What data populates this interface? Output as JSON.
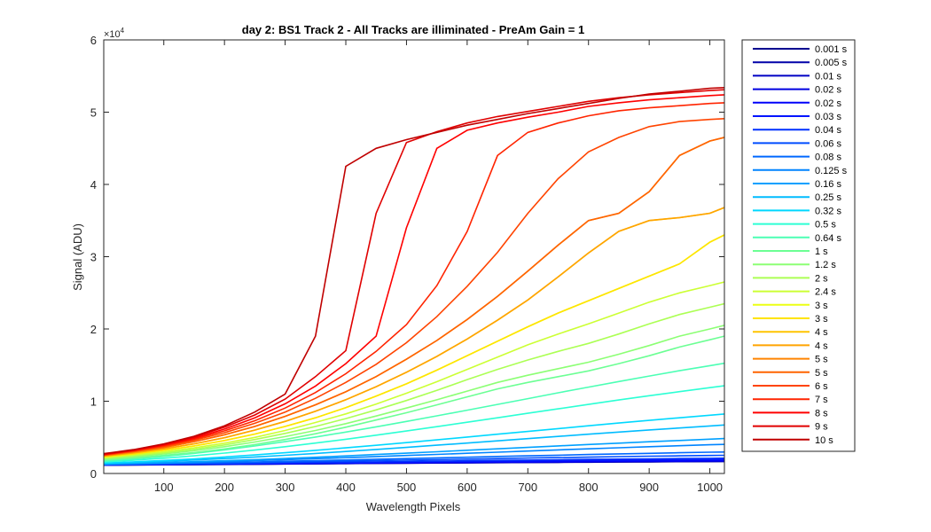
{
  "chart_data": {
    "type": "line",
    "title": "day 2: BS1  Track 2 - All Tracks are illiminated - PreAm Gain = 1",
    "xlabel": "Wavelength Pixels",
    "ylabel": "Signal (ADU)",
    "y_exponent_label": "×10",
    "y_exponent_power": "4",
    "xlim": [
      1,
      1024
    ],
    "ylim": [
      0,
      60000
    ],
    "x_ticks": [
      100,
      200,
      300,
      400,
      500,
      600,
      700,
      800,
      900,
      1000
    ],
    "y_ticks": [
      0,
      10000,
      20000,
      30000,
      40000,
      50000,
      60000
    ],
    "x_tick_labels": [
      "100",
      "200",
      "300",
      "400",
      "500",
      "600",
      "700",
      "800",
      "900",
      "1000"
    ],
    "y_tick_labels": [
      "0",
      "1",
      "2",
      "3",
      "4",
      "5",
      "6"
    ],
    "grid": false,
    "legend_position": "outside-right",
    "x": [
      1,
      50,
      100,
      150,
      200,
      250,
      300,
      350,
      400,
      450,
      500,
      550,
      600,
      650,
      700,
      750,
      800,
      850,
      900,
      950,
      1000,
      1024
    ],
    "series": [
      {
        "name": "0.001 s",
        "color": "#00008f",
        "values": [
          1150,
          1180,
          1200,
          1230,
          1250,
          1280,
          1310,
          1340,
          1370,
          1400,
          1420,
          1450,
          1470,
          1500,
          1520,
          1540,
          1560,
          1590,
          1610,
          1630,
          1650,
          1660
        ]
      },
      {
        "name": "0.005 s",
        "color": "#0000a8",
        "values": [
          1160,
          1190,
          1210,
          1240,
          1260,
          1290,
          1320,
          1350,
          1380,
          1410,
          1430,
          1460,
          1480,
          1510,
          1530,
          1550,
          1580,
          1600,
          1620,
          1640,
          1660,
          1670
        ]
      },
      {
        "name": "0.01 s",
        "color": "#0000c4",
        "values": [
          1170,
          1200,
          1220,
          1250,
          1280,
          1300,
          1330,
          1360,
          1390,
          1420,
          1450,
          1470,
          1500,
          1530,
          1550,
          1570,
          1600,
          1620,
          1640,
          1660,
          1680,
          1690
        ]
      },
      {
        "name": "0.02 s",
        "color": "#0000e0",
        "values": [
          1180,
          1210,
          1240,
          1270,
          1300,
          1330,
          1360,
          1400,
          1430,
          1460,
          1490,
          1520,
          1550,
          1580,
          1610,
          1630,
          1660,
          1690,
          1710,
          1730,
          1760,
          1770
        ]
      },
      {
        "name": "0.02 s",
        "color": "#0000fa",
        "values": [
          1180,
          1210,
          1240,
          1270,
          1300,
          1330,
          1360,
          1400,
          1430,
          1460,
          1490,
          1520,
          1550,
          1580,
          1610,
          1630,
          1660,
          1690,
          1710,
          1730,
          1760,
          1770
        ]
      },
      {
        "name": "0.03 s",
        "color": "#0014ff",
        "values": [
          1190,
          1220,
          1260,
          1290,
          1330,
          1370,
          1410,
          1450,
          1490,
          1530,
          1570,
          1610,
          1650,
          1690,
          1720,
          1760,
          1800,
          1830,
          1860,
          1890,
          1920,
          1930
        ]
      },
      {
        "name": "0.04 s",
        "color": "#0030ff",
        "values": [
          1200,
          1240,
          1280,
          1320,
          1370,
          1410,
          1460,
          1510,
          1560,
          1610,
          1660,
          1710,
          1760,
          1810,
          1850,
          1900,
          1950,
          1990,
          2030,
          2070,
          2100,
          2120
        ]
      },
      {
        "name": "0.06 s",
        "color": "#004cff",
        "values": [
          1220,
          1270,
          1320,
          1380,
          1440,
          1500,
          1570,
          1640,
          1710,
          1780,
          1850,
          1920,
          1990,
          2060,
          2130,
          2200,
          2260,
          2330,
          2390,
          2440,
          2490,
          2510
        ]
      },
      {
        "name": "0.08 s",
        "color": "#0068ff",
        "values": [
          1240,
          1300,
          1370,
          1440,
          1520,
          1600,
          1690,
          1780,
          1870,
          1970,
          2060,
          2160,
          2250,
          2350,
          2440,
          2530,
          2620,
          2710,
          2790,
          2870,
          2940,
          2970
        ]
      },
      {
        "name": "0.125 s",
        "color": "#0084ff",
        "values": [
          1280,
          1360,
          1450,
          1550,
          1660,
          1780,
          1910,
          2050,
          2190,
          2340,
          2490,
          2640,
          2800,
          2950,
          3110,
          3260,
          3410,
          3560,
          3700,
          3840,
          3970,
          4030
        ]
      },
      {
        "name": "0.16 s",
        "color": "#00a0ff",
        "values": [
          1310,
          1400,
          1510,
          1630,
          1770,
          1920,
          2080,
          2250,
          2430,
          2620,
          2810,
          3010,
          3210,
          3410,
          3610,
          3810,
          4010,
          4200,
          4390,
          4570,
          4750,
          4830
        ]
      },
      {
        "name": "0.25 s",
        "color": "#00bcff",
        "values": [
          1390,
          1520,
          1680,
          1860,
          2060,
          2280,
          2520,
          2770,
          3040,
          3320,
          3610,
          3910,
          4210,
          4520,
          4820,
          5130,
          5430,
          5730,
          6020,
          6300,
          6580,
          6710
        ]
      },
      {
        "name": "0.32 s",
        "color": "#00d8ff",
        "values": [
          1450,
          1610,
          1800,
          2030,
          2280,
          2560,
          2870,
          3200,
          3540,
          3900,
          4270,
          4650,
          5040,
          5430,
          5820,
          6210,
          6600,
          6980,
          7350,
          7710,
          8060,
          8230
        ]
      },
      {
        "name": "0.5 s",
        "color": "#2cffd4",
        "values": [
          1600,
          1830,
          2110,
          2440,
          2820,
          3240,
          3710,
          4210,
          4740,
          5300,
          5880,
          6480,
          7090,
          7710,
          8330,
          8950,
          9560,
          10170,
          10760,
          11330,
          11880,
          12130
        ]
      },
      {
        "name": "0.64 s",
        "color": "#4cffb4",
        "values": [
          1720,
          2000,
          2360,
          2780,
          3260,
          3800,
          4400,
          5040,
          5730,
          6450,
          7200,
          7970,
          8760,
          9560,
          10360,
          11160,
          11950,
          12730,
          13490,
          14220,
          14920,
          15250
        ]
      },
      {
        "name": "1 s",
        "color": "#6cff94",
        "values": [
          1850,
          2150,
          2500,
          2900,
          3400,
          4000,
          4700,
          5500,
          6400,
          7400,
          8400,
          9500,
          10600,
          11700,
          12600,
          13400,
          14200,
          15200,
          16300,
          17500,
          18500,
          19000
        ]
      },
      {
        "name": "1.2 s",
        "color": "#8cff74",
        "values": [
          1950,
          2300,
          2700,
          3150,
          3700,
          4350,
          5100,
          5950,
          6900,
          7950,
          9050,
          10200,
          11400,
          12600,
          13600,
          14500,
          15400,
          16500,
          17700,
          19000,
          20000,
          20500
        ]
      },
      {
        "name": "2 s",
        "color": "#acff54",
        "values": [
          2100,
          2450,
          2850,
          3350,
          3950,
          4700,
          5550,
          6500,
          7600,
          8800,
          10100,
          11500,
          13000,
          14400,
          15700,
          16900,
          18000,
          19300,
          20700,
          22000,
          23000,
          23500
        ]
      },
      {
        "name": "2.4 s",
        "color": "#ccff34",
        "values": [
          2200,
          2550,
          3000,
          3550,
          4200,
          5000,
          5950,
          7050,
          8250,
          9600,
          11100,
          12700,
          14400,
          16100,
          17800,
          19300,
          20700,
          22200,
          23700,
          25000,
          26000,
          26500
        ]
      },
      {
        "name": "3 s",
        "color": "#ecff14",
        "values": [
          2300,
          2700,
          3200,
          3800,
          4550,
          5450,
          6500,
          7700,
          9100,
          10700,
          12400,
          14300,
          16300,
          18300,
          20300,
          22200,
          23900,
          25600,
          27300,
          29000,
          32000,
          33000
        ]
      },
      {
        "name": "3 s",
        "color": "#ffe400",
        "values": [
          2310,
          2710,
          3210,
          3810,
          4560,
          5460,
          6510,
          7710,
          9110,
          10710,
          12410,
          14310,
          16310,
          18310,
          20310,
          22210,
          23910,
          25610,
          27310,
          29010,
          32010,
          33010
        ]
      },
      {
        "name": "4 s",
        "color": "#ffc400",
        "values": [
          2400,
          2850,
          3400,
          4100,
          4950,
          6000,
          7200,
          8600,
          10200,
          12000,
          14000,
          16200,
          18600,
          21200,
          24000,
          27200,
          30500,
          33500,
          35000,
          35400,
          36000,
          36800
        ]
      },
      {
        "name": "4 s",
        "color": "#ffa400",
        "values": [
          2410,
          2860,
          3410,
          4110,
          4960,
          6010,
          7210,
          8610,
          10210,
          12010,
          14010,
          16210,
          18610,
          21210,
          24010,
          27210,
          30510,
          33510,
          35010,
          35410,
          36010,
          36810
        ]
      },
      {
        "name": "5 s",
        "color": "#ff8400",
        "values": [
          2500,
          3000,
          3600,
          4400,
          5350,
          6500,
          7900,
          9500,
          11300,
          13400,
          15800,
          18400,
          21300,
          24500,
          28000,
          31600,
          35000,
          36000,
          39000,
          44000,
          46000,
          46500
        ]
      },
      {
        "name": "5 s",
        "color": "#ff6400",
        "values": [
          2510,
          3010,
          3610,
          4410,
          5360,
          6510,
          7910,
          9510,
          11310,
          13410,
          15810,
          18410,
          21310,
          24510,
          28010,
          31610,
          35010,
          36010,
          39010,
          44010,
          46010,
          46510
        ]
      },
      {
        "name": "6 s",
        "color": "#ff4400",
        "values": [
          2550,
          3100,
          3750,
          4600,
          5650,
          6950,
          8500,
          10400,
          12600,
          15100,
          18100,
          21700,
          25900,
          30600,
          36000,
          40800,
          44500,
          46500,
          48000,
          48700,
          49000,
          49100
        ]
      },
      {
        "name": "7 s",
        "color": "#ff2400",
        "values": [
          2600,
          3150,
          3850,
          4750,
          5900,
          7300,
          9050,
          11200,
          13800,
          16900,
          20600,
          26000,
          33500,
          44000,
          47200,
          48500,
          49500,
          50200,
          50600,
          50900,
          51200,
          51300
        ]
      },
      {
        "name": "8 s",
        "color": "#ff0000",
        "values": [
          2650,
          3200,
          3950,
          4900,
          6150,
          7700,
          9650,
          12100,
          15200,
          19000,
          34000,
          45000,
          47500,
          48500,
          49300,
          50000,
          50800,
          51300,
          51700,
          52000,
          52300,
          52400
        ]
      },
      {
        "name": "9 s",
        "color": "#e00000",
        "values": [
          2700,
          3250,
          4050,
          5050,
          6400,
          8100,
          10300,
          13400,
          17000,
          36000,
          45800,
          47300,
          48500,
          49400,
          50100,
          50800,
          51500,
          52000,
          52400,
          52700,
          53000,
          53100
        ]
      },
      {
        "name": "10 s",
        "color": "#c00000",
        "values": [
          2750,
          3300,
          4100,
          5150,
          6600,
          8500,
          11000,
          19000,
          42500,
          45000,
          46200,
          47200,
          48200,
          49000,
          49800,
          50500,
          51200,
          51900,
          52500,
          52900,
          53300,
          53400
        ]
      }
    ]
  }
}
